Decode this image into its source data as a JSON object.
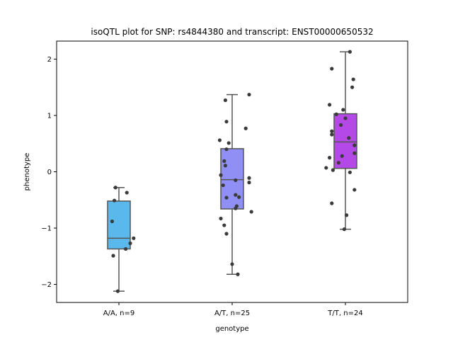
{
  "chart_data": {
    "type": "box",
    "title": "isoQTL plot for SNP: rs4844380 and transcript: ENST00000650532",
    "xlabel": "genotype",
    "ylabel": "phenotype",
    "categories": [
      "A/A, n=9",
      "A/T, n=25",
      "T/T, n=24"
    ],
    "ylim": [
      -2.32,
      2.32
    ],
    "yticks": [
      -2,
      -1,
      0,
      1,
      2
    ],
    "ytick_labels": [
      "−2",
      "−1",
      "0",
      "1",
      "2"
    ],
    "grid": false,
    "point_color": "#3a3a3a",
    "box_edge_color": "#555555",
    "series": [
      {
        "color": "#5bb8ec",
        "box": {
          "whisker_low": -2.12,
          "q1": -1.37,
          "median": -1.18,
          "q3": -0.52,
          "whisker_high": -0.28
        },
        "points": [
          {
            "x": 0.97,
            "y": -0.28
          },
          {
            "x": 1.07,
            "y": -0.37
          },
          {
            "x": 0.96,
            "y": -0.51
          },
          {
            "x": 0.94,
            "y": -0.88
          },
          {
            "x": 1.13,
            "y": -1.18
          },
          {
            "x": 1.1,
            "y": -1.27
          },
          {
            "x": 1.06,
            "y": -1.37
          },
          {
            "x": 0.95,
            "y": -1.49
          },
          {
            "x": 0.99,
            "y": -2.12
          }
        ]
      },
      {
        "color": "#8f8ff5",
        "box": {
          "whisker_low": -1.82,
          "q1": -0.66,
          "median": -0.14,
          "q3": 0.41,
          "whisker_high": 1.37
        },
        "points": [
          {
            "x": 2.15,
            "y": 1.37
          },
          {
            "x": 1.94,
            "y": 1.27
          },
          {
            "x": 1.95,
            "y": 0.89
          },
          {
            "x": 2.12,
            "y": 0.77
          },
          {
            "x": 1.89,
            "y": 0.56
          },
          {
            "x": 1.97,
            "y": 0.51
          },
          {
            "x": 1.95,
            "y": 0.4
          },
          {
            "x": 1.93,
            "y": 0.19
          },
          {
            "x": 1.94,
            "y": 0.11
          },
          {
            "x": 1.9,
            "y": -0.06
          },
          {
            "x": 2.15,
            "y": -0.11
          },
          {
            "x": 2.03,
            "y": -0.15
          },
          {
            "x": 2.15,
            "y": -0.19
          },
          {
            "x": 1.92,
            "y": -0.24
          },
          {
            "x": 2.03,
            "y": -0.41
          },
          {
            "x": 1.95,
            "y": -0.46
          },
          {
            "x": 2.04,
            "y": -0.61
          },
          {
            "x": 2.03,
            "y": -0.65
          },
          {
            "x": 2.17,
            "y": -0.71
          },
          {
            "x": 1.9,
            "y": -0.83
          },
          {
            "x": 1.93,
            "y": -0.95
          },
          {
            "x": 1.95,
            "y": -1.1
          },
          {
            "x": 2.0,
            "y": -1.64
          },
          {
            "x": 2.05,
            "y": -1.82
          },
          {
            "x": 2.06,
            "y": -0.45
          }
        ]
      },
      {
        "color": "#b449e8",
        "box": {
          "whisker_low": -1.02,
          "q1": 0.06,
          "median": 0.53,
          "q3": 1.03,
          "whisker_high": 2.13
        },
        "points": [
          {
            "x": 3.04,
            "y": 2.13
          },
          {
            "x": 2.88,
            "y": 1.83
          },
          {
            "x": 3.07,
            "y": 1.64
          },
          {
            "x": 3.06,
            "y": 1.5
          },
          {
            "x": 2.86,
            "y": 1.19
          },
          {
            "x": 2.98,
            "y": 1.1
          },
          {
            "x": 2.92,
            "y": 1.02
          },
          {
            "x": 3.0,
            "y": 0.95
          },
          {
            "x": 2.96,
            "y": 0.83
          },
          {
            "x": 2.88,
            "y": 0.72
          },
          {
            "x": 2.88,
            "y": 0.66
          },
          {
            "x": 3.03,
            "y": 0.6
          },
          {
            "x": 3.08,
            "y": 0.47
          },
          {
            "x": 3.08,
            "y": 0.33
          },
          {
            "x": 2.97,
            "y": 0.28
          },
          {
            "x": 2.86,
            "y": 0.25
          },
          {
            "x": 2.94,
            "y": 0.16
          },
          {
            "x": 2.83,
            "y": 0.07
          },
          {
            "x": 2.89,
            "y": 0.03
          },
          {
            "x": 3.04,
            "y": -0.01
          },
          {
            "x": 3.08,
            "y": -0.32
          },
          {
            "x": 2.88,
            "y": -0.56
          },
          {
            "x": 3.01,
            "y": -0.77
          },
          {
            "x": 2.99,
            "y": -1.02
          }
        ]
      }
    ]
  }
}
